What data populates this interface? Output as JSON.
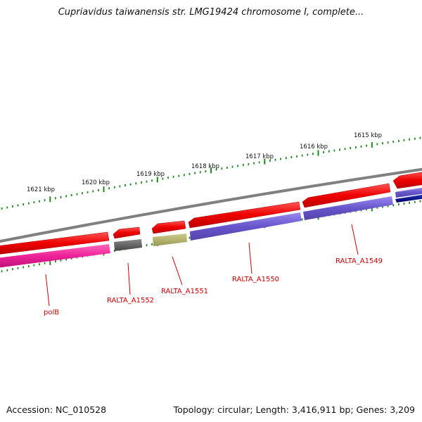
{
  "title": "Cupriavidus taiwanensis str. LMG19424 chromosome I, complete...",
  "footer": {
    "accession": "Accession: NC_010528",
    "summary": "Topology: circular; Length: 3,416,911 bp; Genes: 3,209"
  },
  "ticks": [
    {
      "label": "1615 kbp"
    },
    {
      "label": "1616 kbp"
    },
    {
      "label": "1617 kbp"
    },
    {
      "label": "1618 kbp"
    },
    {
      "label": "1619 kbp"
    },
    {
      "label": "1620 kbp"
    },
    {
      "label": "1621 kbp"
    }
  ],
  "genes": [
    {
      "name": "RALTA_A1549"
    },
    {
      "name": "RALTA_A1550"
    },
    {
      "name": "RALTA_A1551"
    },
    {
      "name": "RALTA_A1552"
    },
    {
      "name": "polB"
    }
  ],
  "colors": {
    "backbone": "#808080",
    "forward_arrow": "#ee1111",
    "reverse_cds_blue": "#7766cc",
    "dark_navy": "#000088",
    "pink": "#ee3399",
    "gray_block": "#666666",
    "olive_block": "#bbbb66",
    "tick_green": "#228822",
    "label_red": "#cc0000"
  }
}
